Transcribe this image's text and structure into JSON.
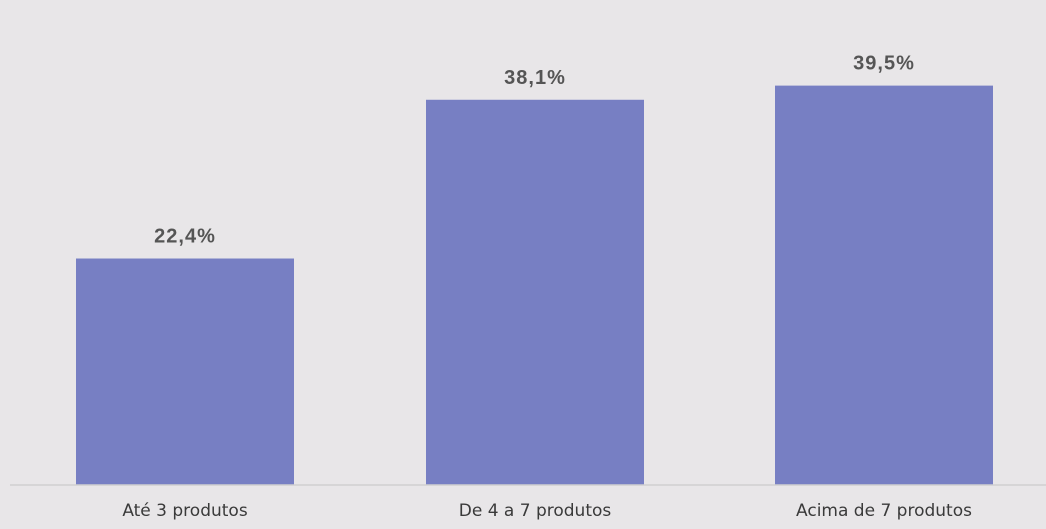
{
  "chart_data": {
    "type": "bar",
    "categories": [
      "Até 3 produtos",
      "De 4 a 7 produtos",
      "Acima de 7 produtos"
    ],
    "values": [
      22.4,
      38.1,
      39.5
    ],
    "data_labels": [
      "22,4%",
      "38,1%",
      "39,5%"
    ],
    "title": "",
    "xlabel": "",
    "ylabel": "",
    "ylim": [
      0,
      45
    ],
    "grid": false,
    "legend": "none",
    "bar_color": "#777fc3",
    "axis_color": "#cfcfcf",
    "background": "#e8e6e8"
  }
}
